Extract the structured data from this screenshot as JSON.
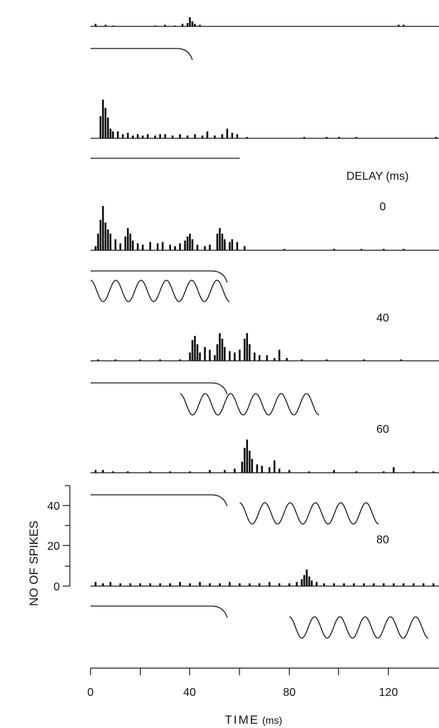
{
  "chart_data": {
    "type": "bar",
    "title": "",
    "delay_label": "DELAY (ms)",
    "xlabel": "TIME",
    "xlabel_unit": "(ms)",
    "ylabel": "NO OF SPIKES",
    "xlim": [
      0,
      140
    ],
    "x_ticks": [
      "0",
      "40",
      "80",
      "120"
    ],
    "y_ticks": [
      "0",
      "20",
      "40"
    ],
    "ylim": [
      0,
      40
    ],
    "series": [
      {
        "delay": "",
        "bins": [
          {
            "x": 2,
            "y": 3
          },
          {
            "x": 6,
            "y": 2
          },
          {
            "x": 9,
            "y": 1
          },
          {
            "x": 26,
            "y": 1
          },
          {
            "x": 30,
            "y": 2
          },
          {
            "x": 34,
            "y": 1
          },
          {
            "x": 37,
            "y": 3
          },
          {
            "x": 39,
            "y": 4
          },
          {
            "x": 40,
            "y": 11
          },
          {
            "x": 41,
            "y": 6
          },
          {
            "x": 42,
            "y": 3
          },
          {
            "x": 44,
            "y": 2
          },
          {
            "x": 124,
            "y": 2
          },
          {
            "x": 126,
            "y": 2
          }
        ],
        "tone_ms": null,
        "tone_start_ms": null
      },
      {
        "delay": "",
        "bins": [
          {
            "x": 4,
            "y": 16
          },
          {
            "x": 5,
            "y": 28
          },
          {
            "x": 6,
            "y": 22
          },
          {
            "x": 7,
            "y": 15
          },
          {
            "x": 8,
            "y": 7
          },
          {
            "x": 9,
            "y": 5
          },
          {
            "x": 11,
            "y": 5
          },
          {
            "x": 13,
            "y": 3
          },
          {
            "x": 15,
            "y": 4
          },
          {
            "x": 17,
            "y": 2
          },
          {
            "x": 19,
            "y": 3
          },
          {
            "x": 21,
            "y": 2
          },
          {
            "x": 23,
            "y": 3
          },
          {
            "x": 26,
            "y": 2
          },
          {
            "x": 28,
            "y": 3
          },
          {
            "x": 30,
            "y": 3
          },
          {
            "x": 33,
            "y": 2
          },
          {
            "x": 36,
            "y": 3
          },
          {
            "x": 39,
            "y": 2
          },
          {
            "x": 42,
            "y": 3
          },
          {
            "x": 45,
            "y": 2
          },
          {
            "x": 47,
            "y": 5
          },
          {
            "x": 50,
            "y": 2
          },
          {
            "x": 53,
            "y": 3
          },
          {
            "x": 55,
            "y": 7
          },
          {
            "x": 57,
            "y": 4
          },
          {
            "x": 59,
            "y": 3
          },
          {
            "x": 63,
            "y": 1
          },
          {
            "x": 86,
            "y": 1
          },
          {
            "x": 95,
            "y": 1
          },
          {
            "x": 100,
            "y": 1
          },
          {
            "x": 107,
            "y": 1
          },
          {
            "x": 139,
            "y": 1
          }
        ],
        "tone_ms": null,
        "tone_start_ms": null
      },
      {
        "delay": "0",
        "bins": [
          {
            "x": 2,
            "y": 3
          },
          {
            "x": 3,
            "y": 12
          },
          {
            "x": 4,
            "y": 22
          },
          {
            "x": 5,
            "y": 32
          },
          {
            "x": 6,
            "y": 20
          },
          {
            "x": 7,
            "y": 15
          },
          {
            "x": 8,
            "y": 12
          },
          {
            "x": 10,
            "y": 8
          },
          {
            "x": 12,
            "y": 5
          },
          {
            "x": 14,
            "y": 10
          },
          {
            "x": 15,
            "y": 16
          },
          {
            "x": 16,
            "y": 12
          },
          {
            "x": 17,
            "y": 7
          },
          {
            "x": 19,
            "y": 5
          },
          {
            "x": 21,
            "y": 4
          },
          {
            "x": 24,
            "y": 6
          },
          {
            "x": 27,
            "y": 5
          },
          {
            "x": 29,
            "y": 6
          },
          {
            "x": 32,
            "y": 4
          },
          {
            "x": 34,
            "y": 3
          },
          {
            "x": 36,
            "y": 5
          },
          {
            "x": 38,
            "y": 7
          },
          {
            "x": 39,
            "y": 10
          },
          {
            "x": 40,
            "y": 12
          },
          {
            "x": 41,
            "y": 8
          },
          {
            "x": 43,
            "y": 4
          },
          {
            "x": 46,
            "y": 3
          },
          {
            "x": 48,
            "y": 4
          },
          {
            "x": 51,
            "y": 12
          },
          {
            "x": 52,
            "y": 16
          },
          {
            "x": 53,
            "y": 12
          },
          {
            "x": 54,
            "y": 8
          },
          {
            "x": 56,
            "y": 6
          },
          {
            "x": 57,
            "y": 8
          },
          {
            "x": 59,
            "y": 6
          },
          {
            "x": 62,
            "y": 3
          },
          {
            "x": 78,
            "y": 1
          },
          {
            "x": 98,
            "y": 1
          },
          {
            "x": 109,
            "y": 1
          },
          {
            "x": 118,
            "y": 1
          },
          {
            "x": 126,
            "y": 1
          }
        ],
        "tone_ms": [
          0,
          56
        ],
        "tone_start_ms": 0
      },
      {
        "delay": "40",
        "bins": [
          {
            "x": 3,
            "y": 1
          },
          {
            "x": 10,
            "y": 1
          },
          {
            "x": 20,
            "y": 1
          },
          {
            "x": 28,
            "y": 1
          },
          {
            "x": 36,
            "y": 1
          },
          {
            "x": 40,
            "y": 6
          },
          {
            "x": 41,
            "y": 15
          },
          {
            "x": 42,
            "y": 18
          },
          {
            "x": 43,
            "y": 12
          },
          {
            "x": 44,
            "y": 6
          },
          {
            "x": 46,
            "y": 10
          },
          {
            "x": 48,
            "y": 8
          },
          {
            "x": 50,
            "y": 4
          },
          {
            "x": 51,
            "y": 12
          },
          {
            "x": 52,
            "y": 20
          },
          {
            "x": 53,
            "y": 16
          },
          {
            "x": 54,
            "y": 10
          },
          {
            "x": 56,
            "y": 7
          },
          {
            "x": 58,
            "y": 6
          },
          {
            "x": 60,
            "y": 8
          },
          {
            "x": 62,
            "y": 16
          },
          {
            "x": 63,
            "y": 20
          },
          {
            "x": 64,
            "y": 12
          },
          {
            "x": 66,
            "y": 6
          },
          {
            "x": 68,
            "y": 4
          },
          {
            "x": 71,
            "y": 4
          },
          {
            "x": 74,
            "y": 2
          },
          {
            "x": 76,
            "y": 8
          },
          {
            "x": 79,
            "y": 2
          },
          {
            "x": 85,
            "y": 1
          },
          {
            "x": 95,
            "y": 1
          },
          {
            "x": 110,
            "y": 1
          },
          {
            "x": 125,
            "y": 1
          }
        ],
        "tone_ms": [
          36,
          92
        ],
        "tone_start_ms": 36
      },
      {
        "delay": "60",
        "bins": [
          {
            "x": 2,
            "y": 2
          },
          {
            "x": 5,
            "y": 2
          },
          {
            "x": 9,
            "y": 1
          },
          {
            "x": 15,
            "y": 1
          },
          {
            "x": 24,
            "y": 1
          },
          {
            "x": 32,
            "y": 1
          },
          {
            "x": 40,
            "y": 1
          },
          {
            "x": 48,
            "y": 2
          },
          {
            "x": 54,
            "y": 2
          },
          {
            "x": 58,
            "y": 3
          },
          {
            "x": 61,
            "y": 8
          },
          {
            "x": 62,
            "y": 18
          },
          {
            "x": 63,
            "y": 24
          },
          {
            "x": 64,
            "y": 16
          },
          {
            "x": 65,
            "y": 10
          },
          {
            "x": 67,
            "y": 6
          },
          {
            "x": 69,
            "y": 5
          },
          {
            "x": 72,
            "y": 4
          },
          {
            "x": 74,
            "y": 9
          },
          {
            "x": 76,
            "y": 3
          },
          {
            "x": 80,
            "y": 2
          },
          {
            "x": 88,
            "y": 1
          },
          {
            "x": 98,
            "y": 2
          },
          {
            "x": 107,
            "y": 1
          },
          {
            "x": 118,
            "y": 1
          },
          {
            "x": 122,
            "y": 4
          },
          {
            "x": 130,
            "y": 1
          },
          {
            "x": 138,
            "y": 1
          }
        ],
        "tone_ms": [
          60,
          116
        ],
        "tone_start_ms": 60
      },
      {
        "delay": "80",
        "bins": [
          {
            "x": 2,
            "y": 3
          },
          {
            "x": 5,
            "y": 2
          },
          {
            "x": 8,
            "y": 3
          },
          {
            "x": 12,
            "y": 2
          },
          {
            "x": 16,
            "y": 2
          },
          {
            "x": 20,
            "y": 2
          },
          {
            "x": 24,
            "y": 2
          },
          {
            "x": 28,
            "y": 2
          },
          {
            "x": 32,
            "y": 2
          },
          {
            "x": 36,
            "y": 3
          },
          {
            "x": 40,
            "y": 2
          },
          {
            "x": 44,
            "y": 3
          },
          {
            "x": 48,
            "y": 2
          },
          {
            "x": 52,
            "y": 2
          },
          {
            "x": 56,
            "y": 3
          },
          {
            "x": 60,
            "y": 2
          },
          {
            "x": 64,
            "y": 2
          },
          {
            "x": 68,
            "y": 2
          },
          {
            "x": 72,
            "y": 3
          },
          {
            "x": 76,
            "y": 2
          },
          {
            "x": 80,
            "y": 2
          },
          {
            "x": 83,
            "y": 3
          },
          {
            "x": 85,
            "y": 5
          },
          {
            "x": 86,
            "y": 8
          },
          {
            "x": 87,
            "y": 12
          },
          {
            "x": 88,
            "y": 7
          },
          {
            "x": 89,
            "y": 4
          },
          {
            "x": 91,
            "y": 3
          },
          {
            "x": 94,
            "y": 2
          },
          {
            "x": 98,
            "y": 2
          },
          {
            "x": 102,
            "y": 2
          },
          {
            "x": 106,
            "y": 2
          },
          {
            "x": 110,
            "y": 2
          },
          {
            "x": 114,
            "y": 2
          },
          {
            "x": 118,
            "y": 2
          },
          {
            "x": 122,
            "y": 2
          },
          {
            "x": 126,
            "y": 2
          },
          {
            "x": 130,
            "y": 2
          },
          {
            "x": 134,
            "y": 2
          },
          {
            "x": 138,
            "y": 2
          }
        ],
        "tone_ms": [
          80,
          136
        ],
        "tone_start_ms": 80
      }
    ]
  }
}
